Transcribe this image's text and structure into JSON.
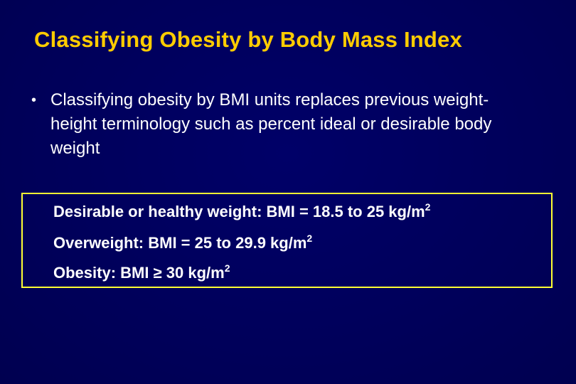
{
  "slide": {
    "title": "Classifying Obesity by Body Mass Index",
    "bullet_marker": "•",
    "bullet_text": "Classifying obesity by BMI units replaces previous weight-height terminology such as percent ideal or desirable body weight",
    "definitions": [
      {
        "text": "Desirable or healthy weight:  BMI = 18.5 to 25 kg/m",
        "superscript": "2"
      },
      {
        "text": "Overweight:  BMI = 25 to 29.9 kg/m",
        "superscript": "2"
      },
      {
        "text": "Obesity:  BMI ≥ 30 kg/m",
        "superscript": "2"
      }
    ],
    "colors": {
      "background": "#00005c",
      "title": "#ffcc00",
      "text": "#ffffff",
      "box_border": "#ffff33"
    }
  }
}
